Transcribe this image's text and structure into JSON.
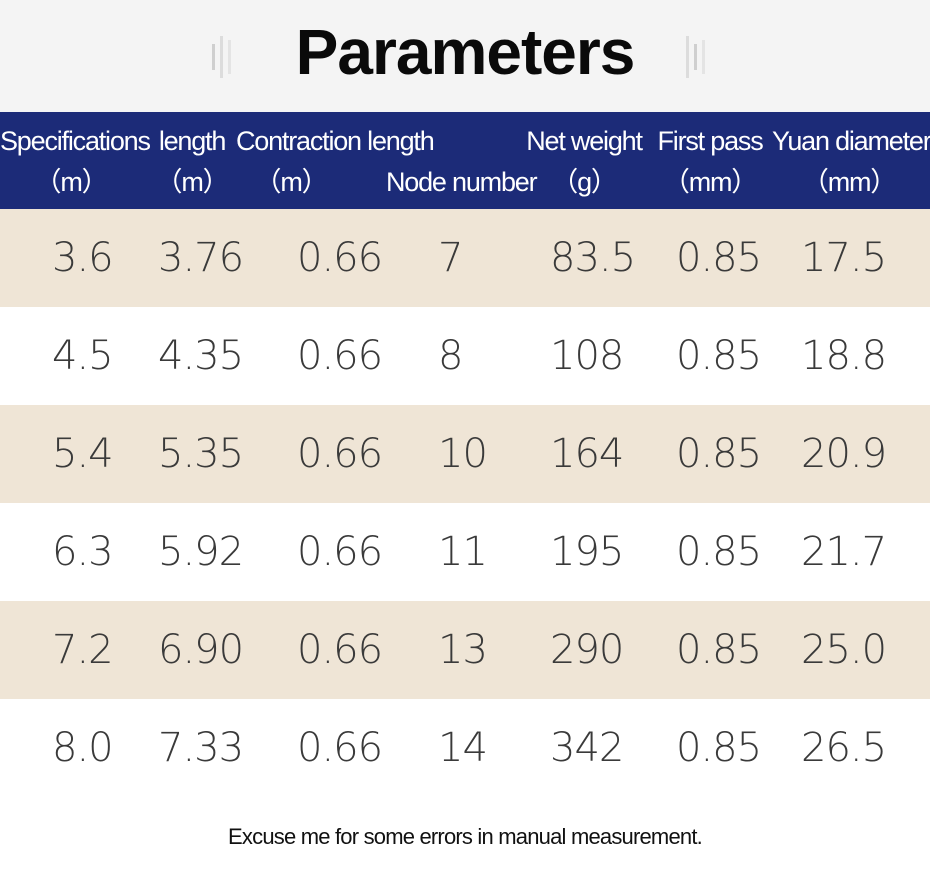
{
  "title": "Parameters",
  "headers": [
    {
      "line1": "Specifications",
      "line2": "（m）"
    },
    {
      "line1": "length",
      "line2": "（m）"
    },
    {
      "line1": "Contraction length",
      "line2": "（m）"
    },
    {
      "line1": "",
      "line2": "Node number"
    },
    {
      "line1": "Net weight",
      "line2": "（g）"
    },
    {
      "line1": "First pass",
      "line2": "（mm）"
    },
    {
      "line1": "Yuan diameter",
      "line2": "（mm）"
    }
  ],
  "rows": [
    [
      "3.6",
      "3.76",
      "0.66",
      "7",
      "83.5",
      "0.85",
      "17.5"
    ],
    [
      "4.5",
      "4.35",
      "0.66",
      "8",
      "108",
      "0.85",
      "18.8"
    ],
    [
      "5.4",
      "5.35",
      "0.66",
      "10",
      "164",
      "0.85",
      "20.9"
    ],
    [
      "6.3",
      "5.92",
      "0.66",
      "11",
      "195",
      "0.85",
      "21.7"
    ],
    [
      "7.2",
      "6.90",
      "0.66",
      "13",
      "290",
      "0.85",
      "25.0"
    ],
    [
      "8.0",
      "7.33",
      "0.66",
      "14",
      "342",
      "0.85",
      "26.5"
    ]
  ],
  "footnote": "Excuse me for some errors in manual measurement.",
  "colors": {
    "header_bg": "#1c2b78",
    "row_tan": "#efe5d6",
    "row_white": "#ffffff",
    "title_band": "#f4f4f4"
  }
}
